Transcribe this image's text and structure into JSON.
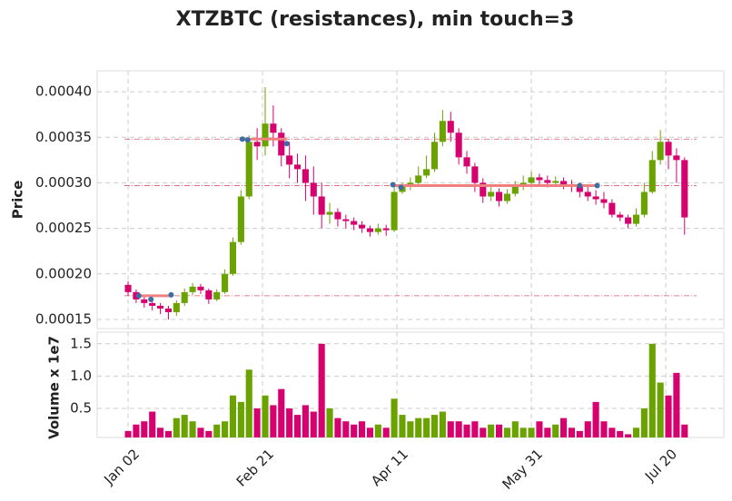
{
  "chart_data": {
    "type": "candlestick",
    "title": "XTZBTC (resistances), min touch=3",
    "ylabel": "Price",
    "x": [
      0,
      3,
      6,
      9,
      12,
      15,
      18,
      21,
      24,
      27,
      30,
      33,
      36,
      39,
      42,
      45,
      48,
      51,
      54,
      57,
      60,
      63,
      66,
      69,
      72,
      75,
      78,
      81,
      84,
      87,
      90,
      93,
      96,
      99,
      102,
      105,
      108,
      111,
      114,
      117,
      120,
      123,
      126,
      129,
      132,
      135,
      138,
      141,
      144,
      147,
      150,
      153,
      156,
      159,
      162,
      165,
      168,
      171,
      174,
      177,
      180,
      183,
      186,
      189,
      192,
      195,
      198,
      201,
      204,
      207
    ],
    "open": [
      0.000188,
      0.00018,
      0.000172,
      0.000168,
      0.000165,
      0.000162,
      0.000158,
      0.000168,
      0.00018,
      0.000186,
      0.000182,
      0.000172,
      0.00018,
      0.0002,
      0.000235,
      0.000285,
      0.000345,
      0.00034,
      0.000365,
      0.000355,
      0.00033,
      0.00032,
      0.000315,
      0.0003,
      0.000285,
      0.000265,
      0.000268,
      0.00026,
      0.000258,
      0.000254,
      0.00025,
      0.000246,
      0.00025,
      0.000248,
      0.00029,
      0.000296,
      0.0003,
      0.000308,
      0.000315,
      0.000345,
      0.000368,
      0.000355,
      0.000328,
      0.000318,
      0.0003,
      0.000285,
      0.00029,
      0.00028,
      0.000288,
      0.000296,
      0.0003,
      0.000306,
      0.000303,
      0.0003,
      0.000302,
      0.000298,
      0.000296,
      0.00029,
      0.000285,
      0.000282,
      0.000278,
      0.000265,
      0.000262,
      0.000255,
      0.000265,
      0.00029,
      0.000325,
      0.000345,
      0.00033,
      0.000325
    ],
    "high": [
      0.000192,
      0.000183,
      0.000176,
      0.000171,
      0.000168,
      0.000165,
      0.000171,
      0.000184,
      0.00019,
      0.000189,
      0.000184,
      0.000183,
      0.000205,
      0.00024,
      0.000292,
      0.000352,
      0.00036,
      0.000405,
      0.000385,
      0.00036,
      0.000345,
      0.000332,
      0.00033,
      0.000318,
      0.0003,
      0.000278,
      0.000272,
      0.000265,
      0.000262,
      0.000258,
      0.000253,
      0.000255,
      0.000254,
      0.000298,
      0.0003,
      0.000306,
      0.000318,
      0.00033,
      0.000355,
      0.00038,
      0.000378,
      0.00036,
      0.000335,
      0.000322,
      0.000305,
      0.000296,
      0.000294,
      0.000293,
      0.000302,
      0.000308,
      0.000312,
      0.00031,
      0.000308,
      0.000307,
      0.000306,
      0.000303,
      0.0003,
      0.000296,
      0.000292,
      0.00029,
      0.000282,
      0.000268,
      0.000265,
      0.000272,
      0.0003,
      0.000335,
      0.000358,
      0.000348,
      0.000338,
      0.000328
    ],
    "low": [
      0.000176,
      0.000168,
      0.000163,
      0.00016,
      0.000156,
      0.00015,
      0.000154,
      0.000165,
      0.000177,
      0.000178,
      0.000167,
      0.00017,
      0.000178,
      0.000198,
      0.000232,
      0.000282,
      0.000325,
      0.00033,
      0.00034,
      0.000318,
      0.000305,
      0.0003,
      0.00028,
      0.000265,
      0.00025,
      0.000255,
      0.000252,
      0.00025,
      0.000248,
      0.000245,
      0.000241,
      0.000243,
      0.000242,
      0.000246,
      0.000288,
      0.000292,
      0.000296,
      0.000305,
      0.000312,
      0.00034,
      0.000345,
      0.00032,
      0.00031,
      0.00029,
      0.000278,
      0.00028,
      0.000274,
      0.000277,
      0.000285,
      0.000292,
      0.000296,
      0.000298,
      0.000295,
      0.000296,
      0.000293,
      0.00029,
      0.000284,
      0.00028,
      0.000276,
      0.000272,
      0.000262,
      0.000258,
      0.00025,
      0.000252,
      0.000262,
      0.000288,
      0.00032,
      0.000315,
      0.0003,
      0.000243
    ],
    "close": [
      0.00018,
      0.000172,
      0.000168,
      0.000165,
      0.000162,
      0.000158,
      0.000168,
      0.00018,
      0.000186,
      0.000182,
      0.000172,
      0.00018,
      0.0002,
      0.000235,
      0.000285,
      0.000345,
      0.00034,
      0.000365,
      0.000355,
      0.00033,
      0.00032,
      0.000315,
      0.0003,
      0.000285,
      0.000265,
      0.000268,
      0.00026,
      0.000258,
      0.000254,
      0.00025,
      0.000246,
      0.00025,
      0.000248,
      0.00029,
      0.000296,
      0.0003,
      0.000308,
      0.000315,
      0.000345,
      0.000368,
      0.000355,
      0.000328,
      0.000318,
      0.0003,
      0.000285,
      0.00029,
      0.00028,
      0.000288,
      0.000296,
      0.0003,
      0.000306,
      0.000303,
      0.0003,
      0.000302,
      0.000298,
      0.000296,
      0.00029,
      0.000285,
      0.000282,
      0.000278,
      0.000265,
      0.000262,
      0.000255,
      0.000265,
      0.00029,
      0.000325,
      0.000345,
      0.00033,
      0.000325,
      0.000262
    ],
    "up_color": "#6aa300",
    "down_color": "#d6006f",
    "grid": true,
    "xlim": [
      -11.5,
      221.6
    ],
    "xticks": [
      {
        "value": 0,
        "label": "Jan 02"
      },
      {
        "value": 50,
        "label": "Feb 21"
      },
      {
        "value": 100,
        "label": "Apr 11"
      },
      {
        "value": 150,
        "label": "May 31"
      },
      {
        "value": 200,
        "label": "Jul 20"
      }
    ],
    "ylim": [
      0.00014,
      0.000423
    ],
    "yticks": [
      0.00015,
      {
        "value": 0.0002,
        "label": "0.00020"
      },
      0.00025,
      {
        "value": 0.0003,
        "label": "0.00030"
      },
      0.00035,
      {
        "value": 0.0004,
        "label": "0.00040"
      }
    ],
    "resistances": [
      {
        "level": 0.000176,
        "start": 3,
        "end": 16,
        "touches_x": [
          4,
          8.5,
          16
        ],
        "touches_y": [
          0.000176,
          0.000172,
          0.000177
        ]
      },
      {
        "level": 0.000348,
        "start": 42.5,
        "end": 59,
        "touches_x": [
          42.5,
          44.5,
          59
        ],
        "touches_y": [
          0.000348,
          0.000347,
          0.000343
        ]
      },
      {
        "level": 0.000297,
        "start": 98.5,
        "end": 175,
        "touches_x": [
          98.5,
          101.5,
          168,
          174.5
        ],
        "touches_y": [
          0.000298,
          0.000295,
          0.000297,
          0.000297
        ]
      }
    ],
    "volume": {
      "ylabel": "Volume x 1e7",
      "values": [
        0.15,
        0.25,
        0.3,
        0.45,
        0.2,
        0.15,
        0.35,
        0.4,
        0.3,
        0.2,
        0.15,
        0.25,
        0.3,
        0.7,
        0.6,
        1.1,
        0.5,
        0.7,
        0.55,
        0.8,
        0.5,
        0.4,
        0.55,
        0.45,
        1.5,
        0.5,
        0.35,
        0.3,
        0.25,
        0.3,
        0.2,
        0.25,
        0.2,
        0.65,
        0.4,
        0.3,
        0.35,
        0.35,
        0.4,
        0.45,
        0.3,
        0.3,
        0.25,
        0.3,
        0.2,
        0.25,
        0.25,
        0.2,
        0.3,
        0.2,
        0.2,
        0.3,
        0.2,
        0.25,
        0.35,
        0.2,
        0.15,
        0.3,
        0.6,
        0.3,
        0.2,
        0.15,
        0.1,
        0.2,
        0.5,
        1.5,
        0.9,
        0.7,
        1.05,
        0.25
      ],
      "ylim": [
        0.05,
        1.68
      ],
      "yticks": [
        0.5,
        {
          "value": 1,
          "label": "1.0"
        },
        1.5
      ]
    }
  }
}
